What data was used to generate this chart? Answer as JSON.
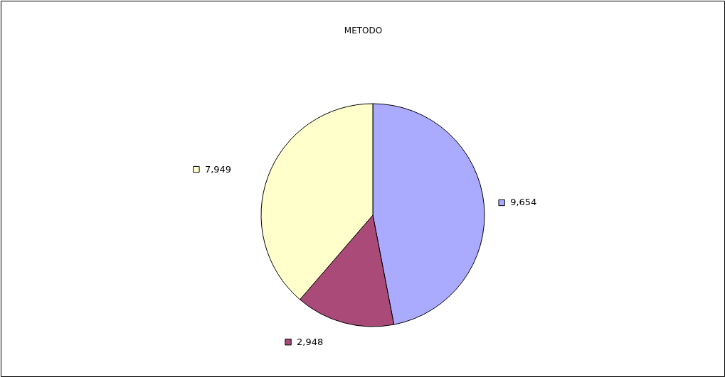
{
  "chart_data": {
    "type": "pie",
    "title": "METODO",
    "categories": [
      null,
      null,
      null
    ],
    "values": [
      9654,
      2948,
      7949
    ],
    "colors": [
      "#aaaaff",
      "#a94a78",
      "#ffffcc"
    ],
    "value_labels": [
      "9,654",
      "2,948",
      "7,949"
    ]
  }
}
